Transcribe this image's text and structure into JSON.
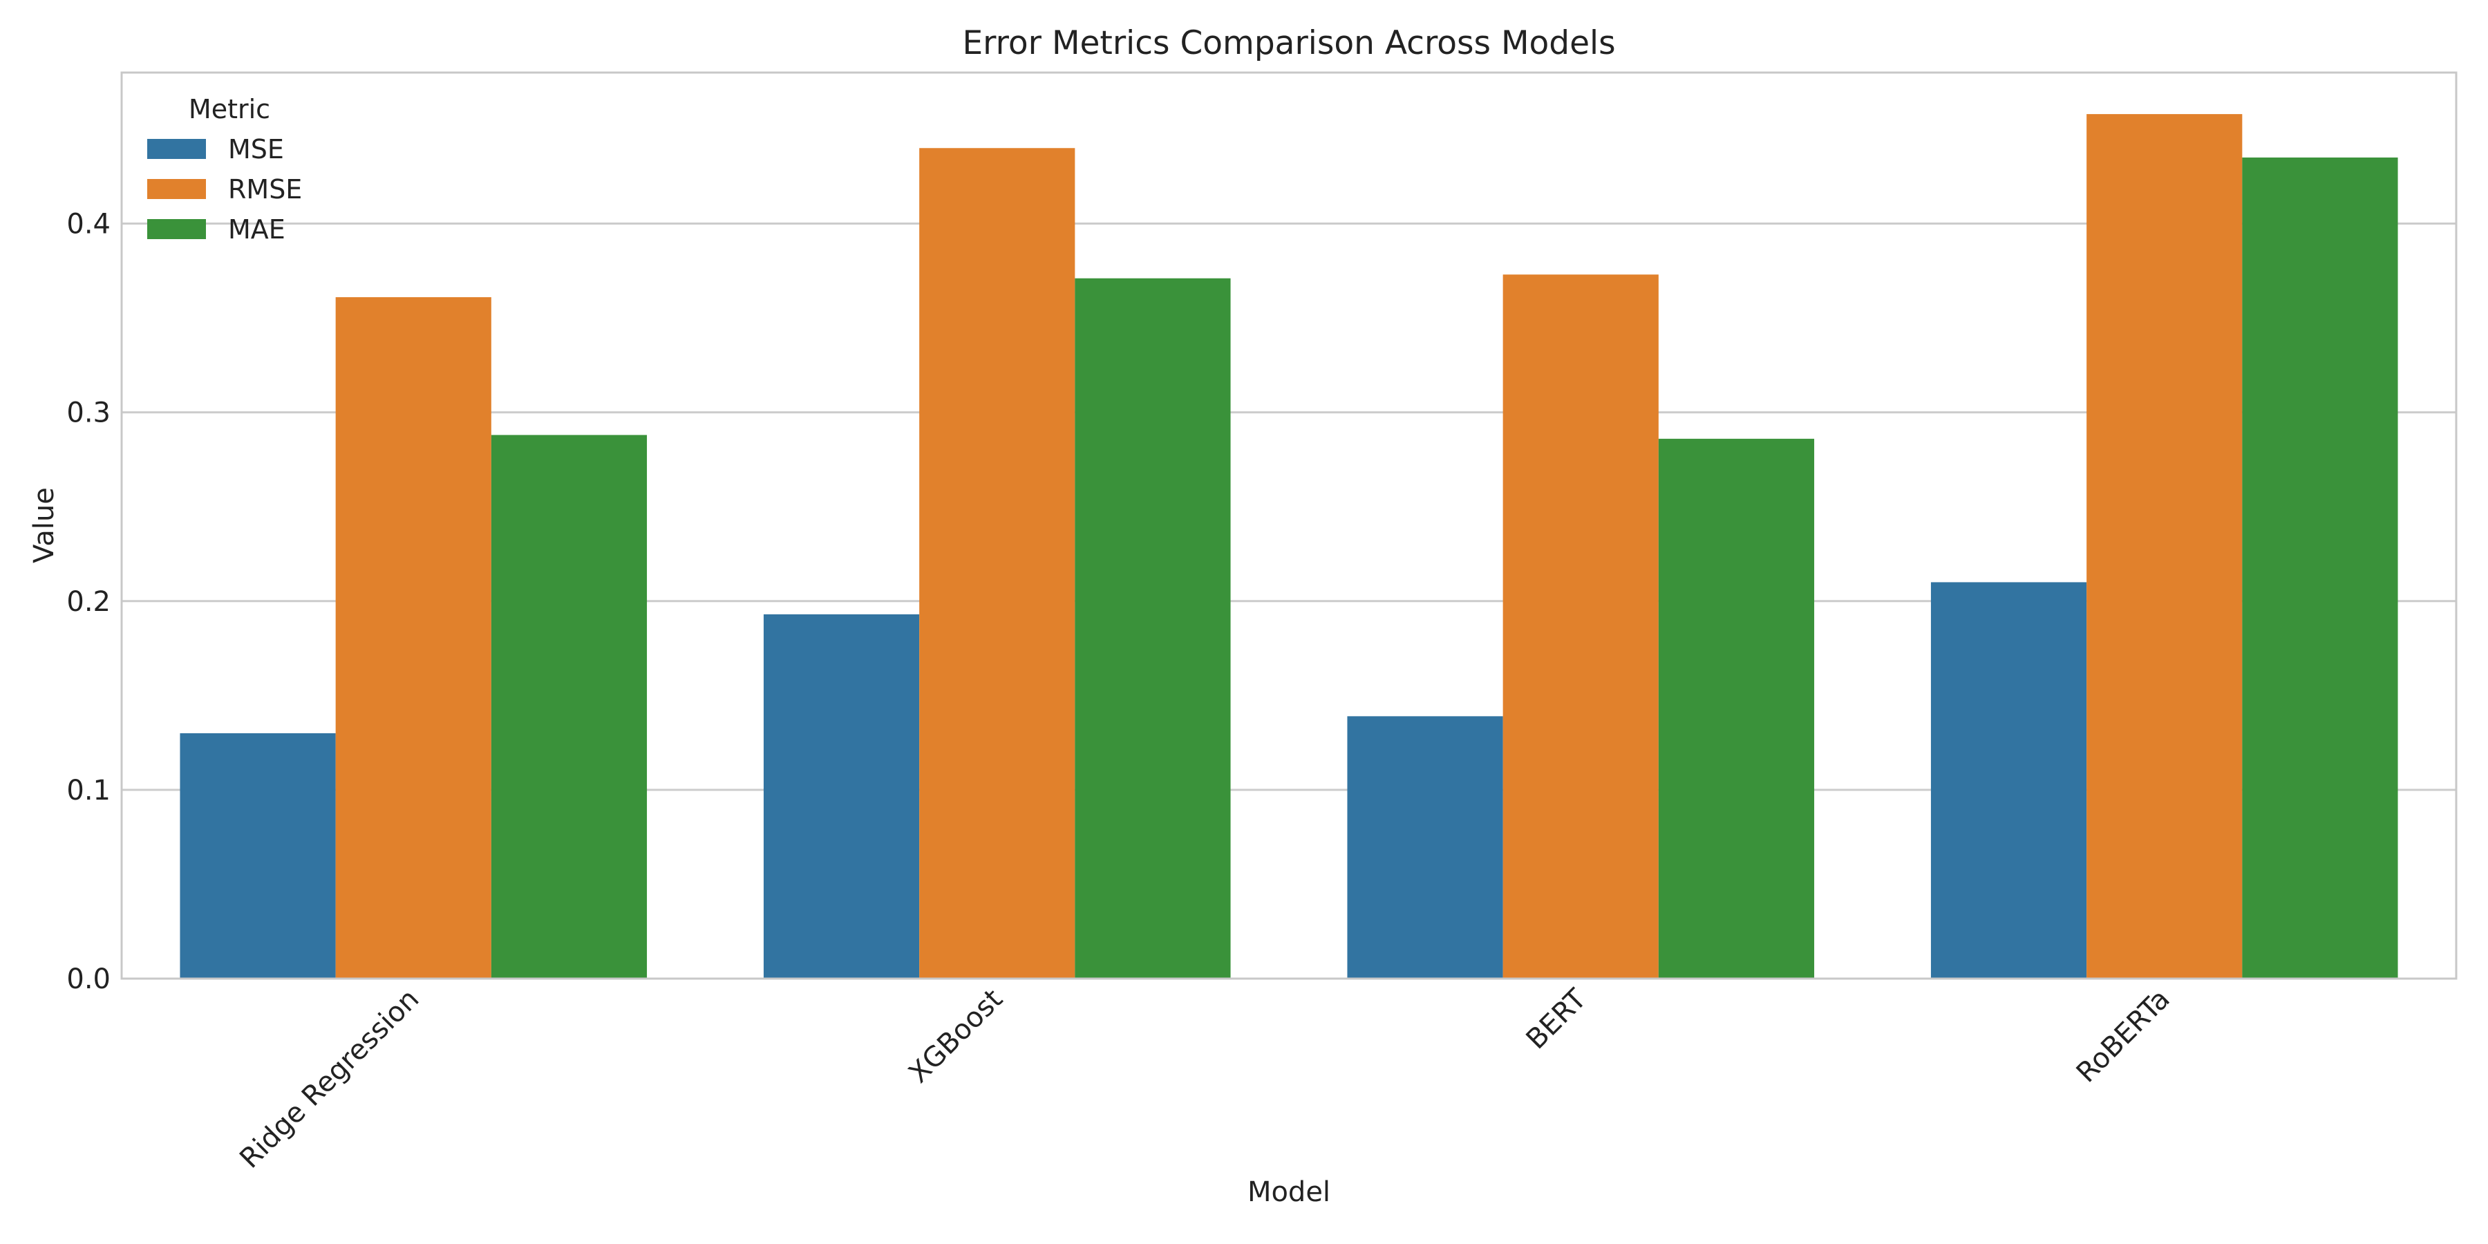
{
  "chart_data": {
    "type": "bar",
    "title": "Error Metrics Comparison Across Models",
    "xlabel": "Model",
    "ylabel": "Value",
    "categories": [
      "Ridge Regression",
      "XGBoost",
      "BERT",
      "RoBERTa"
    ],
    "series": [
      {
        "name": "MSE",
        "color": "#3274a1",
        "values": [
          0.13,
          0.193,
          0.139,
          0.21
        ]
      },
      {
        "name": "RMSE",
        "color": "#e1812c",
        "values": [
          0.361,
          0.44,
          0.373,
          0.458
        ]
      },
      {
        "name": "MAE",
        "color": "#3a923a",
        "values": [
          0.288,
          0.371,
          0.286,
          0.435
        ]
      }
    ],
    "ylim": [
      0,
      0.48
    ],
    "yticks": [
      0.0,
      0.1,
      0.2,
      0.3,
      0.4
    ],
    "ytick_labels": [
      "0.0",
      "0.1",
      "0.2",
      "0.3",
      "0.4"
    ],
    "grid": "y",
    "legend": {
      "title": "Metric",
      "position": "top-left"
    }
  }
}
